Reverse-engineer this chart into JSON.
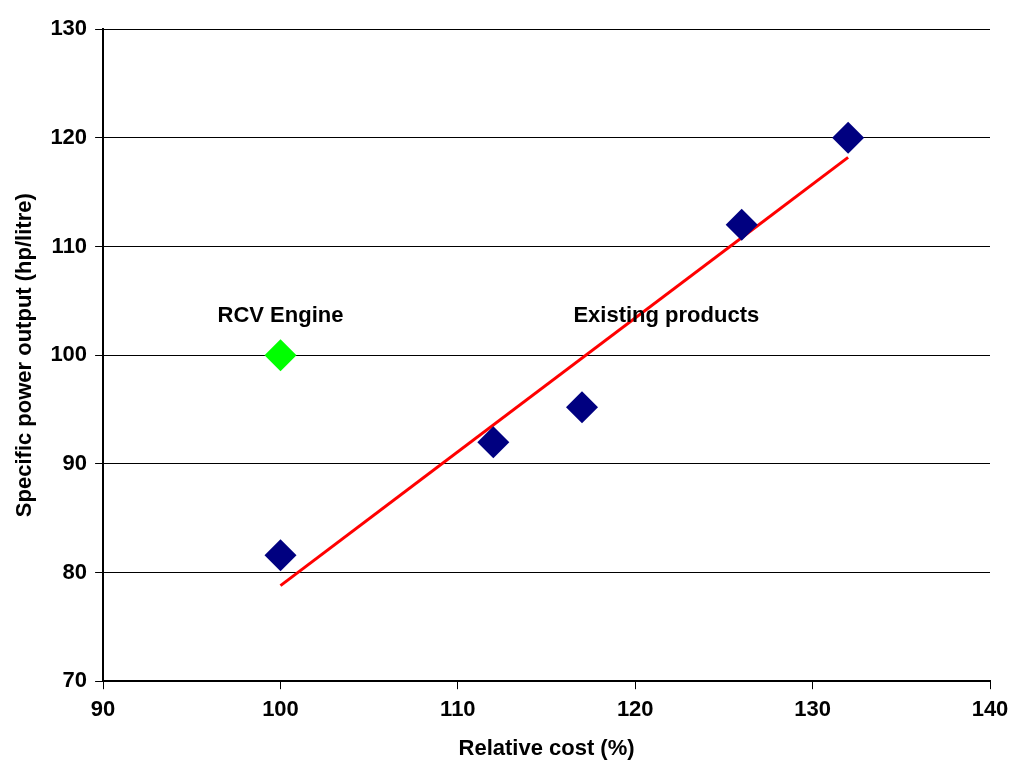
{
  "chart_data": {
    "type": "scatter",
    "xlabel": "Relative cost (%)",
    "ylabel": "Specific power output (hp/litre)",
    "series": [
      {
        "color": "#000080",
        "x": [
          100,
          112,
          117,
          126,
          132
        ],
        "values": [
          81.6,
          92,
          95.2,
          112,
          120
        ],
        "marker": "diamond"
      },
      {
        "color": "#00ff00",
        "x": [
          100
        ],
        "values": [
          100
        ],
        "marker": "diamond"
      },
      {
        "type": "line",
        "color": "#ff0000",
        "x": [
          100,
          132
        ],
        "values": [
          78.8,
          118.2
        ],
        "marker": "none"
      }
    ],
    "annotations": [
      "RCV Engine",
      "Existing products"
    ],
    "xlim": [
      90,
      140
    ],
    "xticks": [
      90,
      100,
      110,
      120,
      130,
      140
    ],
    "ylim": [
      70,
      130
    ],
    "yticks": [
      70,
      80,
      90,
      100,
      110,
      120,
      130
    ],
    "grid": "y",
    "legend": false
  }
}
